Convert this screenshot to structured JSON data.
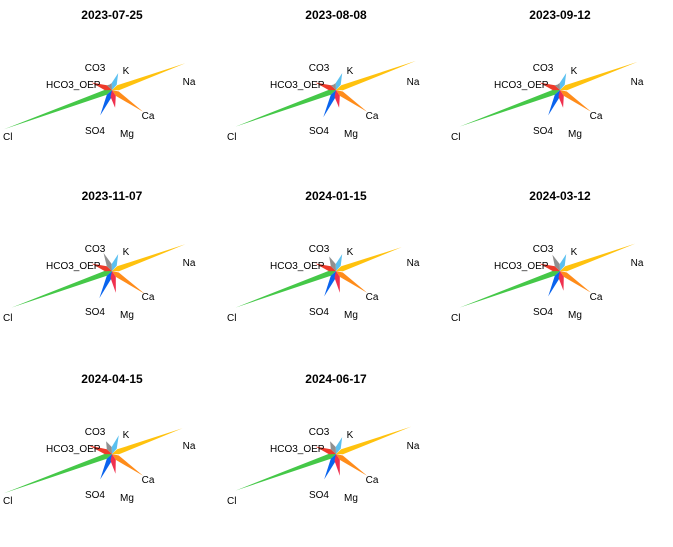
{
  "chart_data": {
    "type": "star",
    "ions": [
      "K",
      "Na",
      "Ca",
      "Mg",
      "SO4",
      "Cl",
      "HCO3_OEP",
      "CO3"
    ],
    "colors": {
      "K": "#5BC0F0",
      "Na": "#FFC20E",
      "Ca": "#FF8C1A",
      "Mg": "#F0304E",
      "SO4": "#0A64EE",
      "Cl": "#45C848",
      "HCO3_OEP": "#EE3A2A",
      "CO3": "#909090"
    },
    "panels": [
      {
        "title": "2023-07-25",
        "values": {
          "K": 18,
          "Na": 78,
          "Ca": 38,
          "Mg": 18,
          "SO4": 28,
          "Cl": 115,
          "HCO3_OEP": 22,
          "CO3": 6
        }
      },
      {
        "title": "2023-08-08",
        "values": {
          "K": 18,
          "Na": 85,
          "Ca": 38,
          "Mg": 18,
          "SO4": 30,
          "Cl": 107,
          "HCO3_OEP": 22,
          "CO3": 6
        }
      },
      {
        "title": "2023-09-12",
        "values": {
          "K": 18,
          "Na": 82,
          "Ca": 38,
          "Mg": 18,
          "SO4": 28,
          "Cl": 107,
          "HCO3_OEP": 22,
          "CO3": 6
        }
      },
      {
        "title": "2023-11-07",
        "values": {
          "K": 18,
          "Na": 78,
          "Ca": 40,
          "Mg": 22,
          "SO4": 30,
          "Cl": 107,
          "HCO3_OEP": 22,
          "CO3": 20
        }
      },
      {
        "title": "2024-01-15",
        "values": {
          "K": 18,
          "Na": 70,
          "Ca": 38,
          "Mg": 22,
          "SO4": 28,
          "Cl": 107,
          "HCO3_OEP": 22,
          "CO3": 16
        }
      },
      {
        "title": "2024-03-12",
        "values": {
          "K": 18,
          "Na": 80,
          "Ca": 38,
          "Mg": 20,
          "SO4": 28,
          "Cl": 107,
          "HCO3_OEP": 22,
          "CO3": 18
        }
      },
      {
        "title": "2024-04-15",
        "values": {
          "K": 20,
          "Na": 75,
          "Ca": 38,
          "Mg": 20,
          "SO4": 28,
          "Cl": 115,
          "HCO3_OEP": 25,
          "CO3": 14
        }
      },
      {
        "title": "2024-06-17",
        "values": {
          "K": 18,
          "Na": 80,
          "Ca": 38,
          "Mg": 22,
          "SO4": 28,
          "Cl": 107,
          "HCO3_OEP": 22,
          "CO3": 14
        }
      }
    ]
  }
}
